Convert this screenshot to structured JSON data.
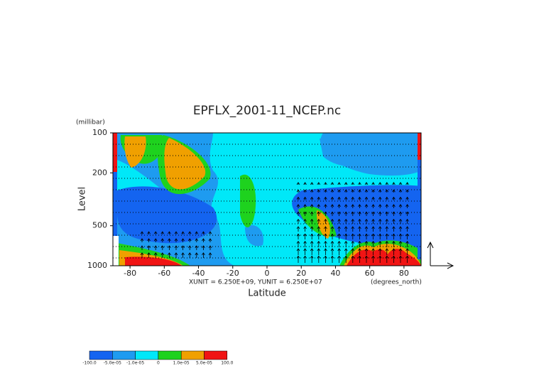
{
  "chart_data": {
    "type": "contour",
    "title": "EPFLX_2001-11_NCEP.nc",
    "x_label": "Latitude",
    "x_units": "(degrees_north)",
    "y_label": "Level",
    "y_units": "(millibar)",
    "vector_units": "XUNIT = 6.250E+09, YUNIT = 6.250E+07",
    "xlim": [
      -90,
      90
    ],
    "xticks": [
      -80,
      -60,
      -40,
      -20,
      0,
      20,
      40,
      60,
      80
    ],
    "ylim": [
      1000,
      100
    ],
    "yticks": [
      100,
      200,
      500,
      1000
    ],
    "y_log_scale": true,
    "colorbar": {
      "levels": [
        {
          "value": -100,
          "label": "-100.0"
        },
        {
          "value": -5e-05,
          "label": "-5.0e-05"
        },
        {
          "value": -1e-05,
          "label": "-1.0e-05"
        },
        0.0,
        {
          "value": 1e-05,
          "label": "1.0e-05"
        },
        {
          "value": 5e-05,
          "label": "5.0e-05"
        },
        {
          "value": 100,
          "label": "100.0"
        }
      ],
      "colors": [
        "#1464f0",
        "#1e9bf0",
        "#00e8f8",
        "#1ed21e",
        "#f0a000",
        "#f01414"
      ]
    }
  }
}
